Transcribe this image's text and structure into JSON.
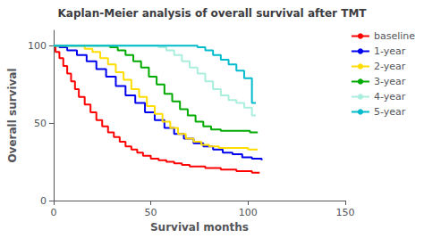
{
  "chart_data": {
    "type": "step",
    "title": "Kaplan-Meier analysis of overall survival after TMT",
    "xlabel": "Survival months",
    "ylabel": "Overall survival",
    "xlim": [
      0,
      150
    ],
    "ylim": [
      0,
      110
    ],
    "xticks": [
      0,
      50,
      100,
      150
    ],
    "yticks": [
      0,
      50,
      100
    ],
    "grid": false,
    "legend": "right",
    "series": [
      {
        "name": "baseline",
        "color": "#FF0000",
        "x": [
          0,
          1,
          3,
          5,
          7,
          9,
          11,
          13,
          16,
          19,
          22,
          25,
          28,
          31,
          34,
          37,
          40,
          43,
          46,
          50,
          54,
          58,
          62,
          66,
          70,
          74,
          78,
          82,
          86,
          90,
          94,
          98,
          102,
          106
        ],
        "values": [
          100,
          96,
          92,
          87,
          82,
          77,
          72,
          67,
          62,
          57,
          52,
          48,
          44,
          41,
          38,
          35,
          33,
          31,
          29,
          27,
          26,
          25,
          24,
          23,
          22,
          22,
          21,
          21,
          20,
          20,
          19,
          19,
          18,
          18
        ]
      },
      {
        "name": "1-year",
        "color": "#0000EE",
        "x": [
          0,
          3,
          7,
          12,
          17,
          22,
          27,
          32,
          37,
          42,
          47,
          52,
          57,
          62,
          67,
          72,
          77,
          82,
          87,
          92,
          97,
          102,
          107
        ],
        "values": [
          100,
          99,
          97,
          94,
          90,
          85,
          80,
          74,
          68,
          63,
          57,
          52,
          47,
          43,
          40,
          37,
          35,
          33,
          31,
          30,
          28,
          27,
          26
        ]
      },
      {
        "name": "2-year",
        "color": "#FFDD00",
        "x": [
          0,
          12,
          16,
          20,
          24,
          28,
          32,
          36,
          40,
          44,
          48,
          52,
          56,
          60,
          64,
          68,
          72,
          76,
          80,
          85,
          90,
          95,
          100,
          105
        ],
        "values": [
          100,
          100,
          98,
          96,
          92,
          88,
          83,
          78,
          72,
          67,
          61,
          56,
          51,
          47,
          43,
          40,
          38,
          36,
          35,
          34,
          34,
          34,
          33,
          33
        ]
      },
      {
        "name": "3-year",
        "color": "#00AA00",
        "x": [
          0,
          25,
          29,
          33,
          37,
          41,
          45,
          49,
          53,
          57,
          61,
          65,
          69,
          73,
          77,
          81,
          86,
          91,
          96,
          101,
          105
        ],
        "values": [
          100,
          100,
          99,
          97,
          94,
          90,
          86,
          80,
          75,
          69,
          64,
          59,
          55,
          51,
          48,
          46,
          45,
          45,
          45,
          44,
          44
        ]
      },
      {
        "name": "4-year",
        "color": "#AAEEDD",
        "x": [
          0,
          50,
          54,
          58,
          62,
          66,
          70,
          74,
          78,
          82,
          86,
          90,
          94,
          98,
          102,
          104
        ],
        "values": [
          100,
          100,
          99,
          97,
          94,
          90,
          86,
          82,
          77,
          72,
          68,
          65,
          63,
          60,
          55,
          55
        ]
      },
      {
        "name": "5-year",
        "color": "#00BBCC",
        "x": [
          0,
          70,
          74,
          78,
          82,
          86,
          90,
          94,
          98,
          102,
          104
        ],
        "values": [
          100,
          100,
          99,
          97,
          94,
          91,
          88,
          84,
          79,
          63,
          63
        ]
      }
    ]
  }
}
